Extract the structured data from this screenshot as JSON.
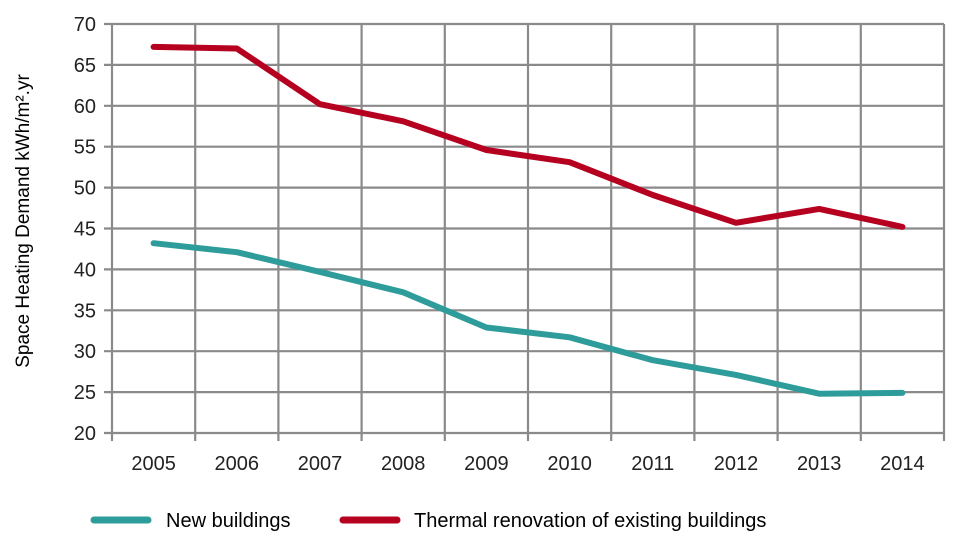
{
  "chart_data": {
    "type": "line",
    "title": "",
    "xlabel": "",
    "ylabel": "Space Heating Demand kWh/m².yr",
    "ylim": [
      20,
      70
    ],
    "yticks": [
      "20",
      "25",
      "30",
      "35",
      "40",
      "45",
      "50",
      "55",
      "60",
      "65",
      "70"
    ],
    "ytick_values": [
      20,
      25,
      30,
      35,
      40,
      45,
      50,
      55,
      60,
      65,
      70
    ],
    "categories": [
      "2005",
      "2006",
      "2007",
      "2008",
      "2009",
      "2010",
      "2011",
      "2012",
      "2013",
      "2014"
    ],
    "grid": true,
    "legend_position": "bottom",
    "series": [
      {
        "name": "New buildings",
        "color": "#2e9c9a",
        "values": [
          43.2,
          42.1,
          39.7,
          37.2,
          32.9,
          31.7,
          28.9,
          27.1,
          24.8,
          24.9
        ]
      },
      {
        "name": "Thermal renovation of existing buildings",
        "color": "#b5001f",
        "values": [
          67.2,
          67.0,
          60.2,
          58.1,
          54.6,
          53.1,
          49.1,
          45.7,
          47.4,
          45.2
        ]
      }
    ]
  }
}
